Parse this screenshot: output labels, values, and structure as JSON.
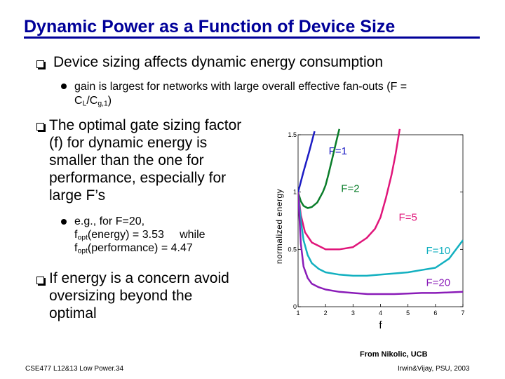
{
  "slide": {
    "title": "Dynamic Power as a Function of Device Size",
    "bullets": {
      "b1": "Device sizing affects dynamic energy consumption",
      "b1_sub_line1": "gain is largest for networks with large overall effective fan-outs (F =",
      "b1_sub_line2_a": "C",
      "b1_sub_line2_sub1": "L",
      "b1_sub_line2_b": "/C",
      "b1_sub_line2_sub2": "g,1",
      "b1_sub_line2_c": ")",
      "b2_line1": "The optimal gate sizing factor",
      "b2_line2": "(f) for dynamic energy is",
      "b2_line3": "smaller than the one for",
      "b2_line4": "performance, especially for",
      "b2_line5": "large F’s",
      "b2_sub_line1": "e.g., for F=20,",
      "b2_sub_line2_a": "f",
      "b2_sub_line2_sub": "opt",
      "b2_sub_line2_b": "(energy) = 3.53     while",
      "b2_sub_line3_a": "f",
      "b2_sub_line3_sub": "opt",
      "b2_sub_line3_b": "(performance) = 4.47",
      "b3_line1": "If energy is a concern avoid",
      "b3_line2": "oversizing beyond the",
      "b3_line3": "optimal"
    },
    "footer": {
      "source": "From Nikolic, UCB",
      "left": "CSE477  L12&13 Low Power.34",
      "right": "Irwin&Vijay, PSU, 2003"
    }
  },
  "colors": {
    "title": "#000099",
    "F1": "#1c1cc4",
    "F2": "#0a7d2a",
    "F5": "#e0157a",
    "F10": "#12b0c0",
    "F20": "#8a1cb8"
  },
  "chart_data": {
    "type": "line",
    "xlabel": "f",
    "ylabel": "normalized energy",
    "xlim": [
      1,
      7
    ],
    "ylim": [
      0,
      1.5
    ],
    "xticks": [
      "1",
      "2",
      "3",
      "4",
      "5",
      "6",
      "7"
    ],
    "yticks": [
      "0",
      "0.5",
      "1",
      "1.5"
    ],
    "series": [
      {
        "name": "F=1",
        "x": [
          1.0,
          1.2,
          1.4,
          1.5,
          1.6
        ],
        "y": [
          1.0,
          1.18,
          1.35,
          1.44,
          1.53
        ]
      },
      {
        "name": "F=2",
        "x": [
          1.0,
          1.1,
          1.2,
          1.35,
          1.5,
          1.7,
          1.9,
          2.0,
          2.1,
          2.25,
          2.4,
          2.5
        ],
        "y": [
          1.0,
          0.92,
          0.88,
          0.86,
          0.87,
          0.91,
          1.0,
          1.06,
          1.15,
          1.3,
          1.45,
          1.55
        ]
      },
      {
        "name": "F=5",
        "x": [
          1.0,
          1.1,
          1.25,
          1.5,
          2.0,
          2.5,
          3.0,
          3.5,
          3.8,
          4.0,
          4.2,
          4.4,
          4.55,
          4.7
        ],
        "y": [
          1.0,
          0.8,
          0.65,
          0.56,
          0.5,
          0.5,
          0.52,
          0.6,
          0.68,
          0.78,
          0.95,
          1.15,
          1.33,
          1.55
        ]
      },
      {
        "name": "F=10",
        "x": [
          1.0,
          1.1,
          1.2,
          1.35,
          1.5,
          1.75,
          2.0,
          2.5,
          3.0,
          3.5,
          4.0,
          4.5,
          5.0,
          5.5,
          6.0,
          6.5,
          7.0
        ],
        "y": [
          1.0,
          0.75,
          0.58,
          0.45,
          0.38,
          0.33,
          0.3,
          0.28,
          0.27,
          0.27,
          0.28,
          0.29,
          0.3,
          0.32,
          0.34,
          0.42,
          0.58
        ]
      },
      {
        "name": "F=20",
        "x": [
          1.0,
          1.1,
          1.2,
          1.35,
          1.5,
          1.75,
          2.0,
          2.5,
          3.0,
          3.53,
          4.0,
          4.5,
          5.0,
          5.5,
          6.0,
          6.5,
          7.0
        ],
        "y": [
          1.0,
          0.55,
          0.35,
          0.25,
          0.2,
          0.17,
          0.15,
          0.13,
          0.12,
          0.11,
          0.11,
          0.11,
          0.115,
          0.12,
          0.12,
          0.125,
          0.13
        ]
      }
    ],
    "annotations": [
      "F=1",
      "F=2",
      "F=5",
      "F=10",
      "F=20"
    ]
  }
}
